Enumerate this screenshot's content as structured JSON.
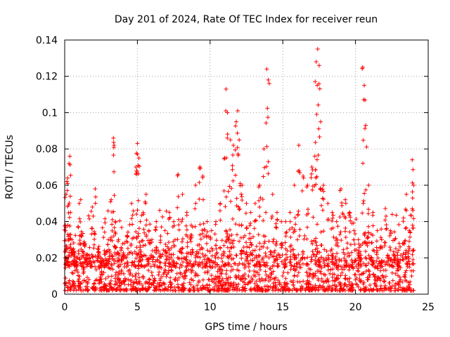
{
  "chart_data": {
    "type": "scatter",
    "title": "Day 201 of 2024, Rate Of TEC Index for receiver reun",
    "xlabel": "GPS time / hours",
    "ylabel": "ROTI / TECUs",
    "xlim": [
      0,
      25
    ],
    "ylim": [
      0,
      0.14
    ],
    "xticks": [
      0,
      5,
      10,
      15,
      20,
      25
    ],
    "xtick_labels": [
      "0",
      "5",
      "10",
      "15",
      "20",
      "25"
    ],
    "yticks": [
      0,
      0.02,
      0.04,
      0.06,
      0.08,
      0.1,
      0.12,
      0.14
    ],
    "ytick_labels": [
      "0",
      "0.02",
      "0.04",
      "0.06",
      "0.08",
      "0.1",
      "0.12",
      "0.14"
    ],
    "grid": true,
    "marker": "plus",
    "marker_color": "#ff0000",
    "series": [
      {
        "x": [
          0.05,
          0.1,
          0.15,
          0.2,
          0.3,
          0.35,
          0.4,
          0.5,
          0.6,
          0.7,
          0.8,
          1.0,
          1.1,
          1.3,
          1.5,
          1.7,
          1.9,
          2.1,
          2.3,
          2.5,
          2.8,
          3.0,
          3.2,
          3.35,
          3.4,
          3.5,
          3.7,
          3.9,
          4.1,
          4.3,
          4.6,
          4.9,
          5.0,
          5.1,
          5.2,
          5.4,
          5.6,
          5.8,
          6.0,
          6.3,
          6.6,
          6.9,
          7.2,
          7.5,
          7.8,
          8.1,
          8.4,
          8.7,
          9.0,
          9.3,
          9.5,
          9.8,
          10.1,
          10.4,
          10.7,
          11.0,
          11.1,
          11.2,
          11.4,
          11.6,
          11.8,
          11.9,
          12.0,
          12.2,
          12.5,
          12.8,
          13.1,
          13.4,
          13.7,
          13.9,
          14.0,
          14.3,
          14.6,
          14.9,
          15.2,
          15.5,
          15.8,
          16.1,
          16.4,
          16.7,
          17.0,
          17.2,
          17.3,
          17.4,
          17.5,
          17.6,
          17.8,
          18.1,
          18.4,
          18.7,
          19.0,
          19.3,
          19.6,
          19.9,
          20.2,
          20.5,
          20.6,
          20.7,
          20.9,
          21.2,
          21.5,
          21.8,
          22.1,
          22.4,
          22.7,
          23.0,
          23.3,
          23.5,
          23.7,
          23.9,
          24.0
        ],
        "y": [
          0.038,
          0.055,
          0.062,
          0.064,
          0.072,
          0.076,
          0.045,
          0.03,
          0.025,
          0.02,
          0.018,
          0.05,
          0.052,
          0.028,
          0.022,
          0.02,
          0.048,
          0.058,
          0.025,
          0.02,
          0.022,
          0.03,
          0.052,
          0.086,
          0.082,
          0.04,
          0.03,
          0.025,
          0.028,
          0.032,
          0.05,
          0.07,
          0.083,
          0.075,
          0.04,
          0.045,
          0.055,
          0.035,
          0.03,
          0.04,
          0.032,
          0.035,
          0.045,
          0.04,
          0.066,
          0.055,
          0.045,
          0.038,
          0.06,
          0.07,
          0.065,
          0.04,
          0.035,
          0.04,
          0.05,
          0.075,
          0.113,
          0.1,
          0.085,
          0.082,
          0.095,
          0.101,
          0.085,
          0.06,
          0.05,
          0.045,
          0.05,
          0.06,
          0.08,
          0.124,
          0.118,
          0.055,
          0.045,
          0.04,
          0.04,
          0.045,
          0.06,
          0.082,
          0.065,
          0.06,
          0.07,
          0.076,
          0.128,
          0.135,
          0.126,
          0.095,
          0.06,
          0.05,
          0.045,
          0.04,
          0.058,
          0.052,
          0.045,
          0.035,
          0.03,
          0.125,
          0.115,
          0.093,
          0.06,
          0.045,
          0.035,
          0.03,
          0.043,
          0.035,
          0.03,
          0.028,
          0.042,
          0.055,
          0.035,
          0.074,
          0.06
        ],
        "baseline_band": [
          0.0,
          0.02
        ]
      }
    ]
  }
}
